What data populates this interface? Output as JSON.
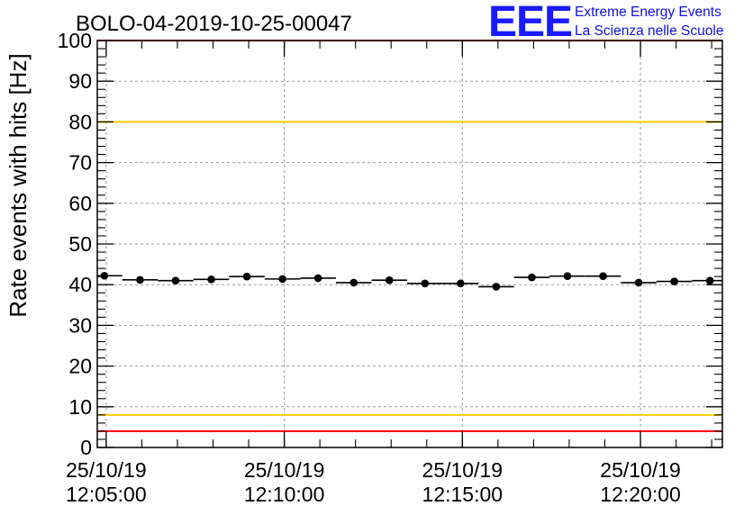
{
  "chart_data": {
    "type": "scatter",
    "title": "BOLO-04-2019-10-25-00047",
    "xlabel": "",
    "ylabel": "Rate events with hits [Hz]",
    "ylim": [
      0,
      100
    ],
    "yticks": [
      0,
      10,
      20,
      30,
      40,
      50,
      60,
      70,
      80,
      90,
      100
    ],
    "xlim_minutes": [
      0,
      17.55
    ],
    "xticks": [
      {
        "minute": 0.25,
        "date": "25/10/19",
        "time": "12:05:00"
      },
      {
        "minute": 5.25,
        "date": "25/10/19",
        "time": "12:10:00"
      },
      {
        "minute": 10.25,
        "date": "25/10/19",
        "time": "12:15:00"
      },
      {
        "minute": 15.25,
        "date": "25/10/19",
        "time": "12:20:00"
      }
    ],
    "grid": true,
    "bin_width_minutes": 1,
    "series": [
      {
        "name": "rate",
        "x_minutes": [
          0.2,
          1.2,
          2.2,
          3.2,
          4.2,
          5.2,
          6.2,
          7.2,
          8.2,
          9.2,
          10.2,
          11.2,
          12.2,
          13.2,
          14.2,
          15.2,
          16.2,
          17.2
        ],
        "values": [
          42.2,
          41.2,
          41.0,
          41.3,
          42.0,
          41.4,
          41.6,
          40.5,
          41.1,
          40.3,
          40.3,
          39.5,
          41.8,
          42.1,
          42.1,
          40.5,
          40.8,
          41.0
        ]
      }
    ],
    "reference_lines": [
      {
        "name": "upper-red-limit",
        "value": 100,
        "color": "#ff0000"
      },
      {
        "name": "upper-yellow-limit",
        "value": 80,
        "color": "#ffcc00"
      },
      {
        "name": "lower-yellow-limit",
        "value": 8,
        "color": "#ffcc00"
      },
      {
        "name": "lower-red-limit",
        "value": 4,
        "color": "#ff0000"
      }
    ]
  },
  "logo": {
    "letters": "EEE",
    "line1": "Extreme Energy Events",
    "line2": "La Scienza nelle Scuole",
    "color": "#1a1aff"
  }
}
